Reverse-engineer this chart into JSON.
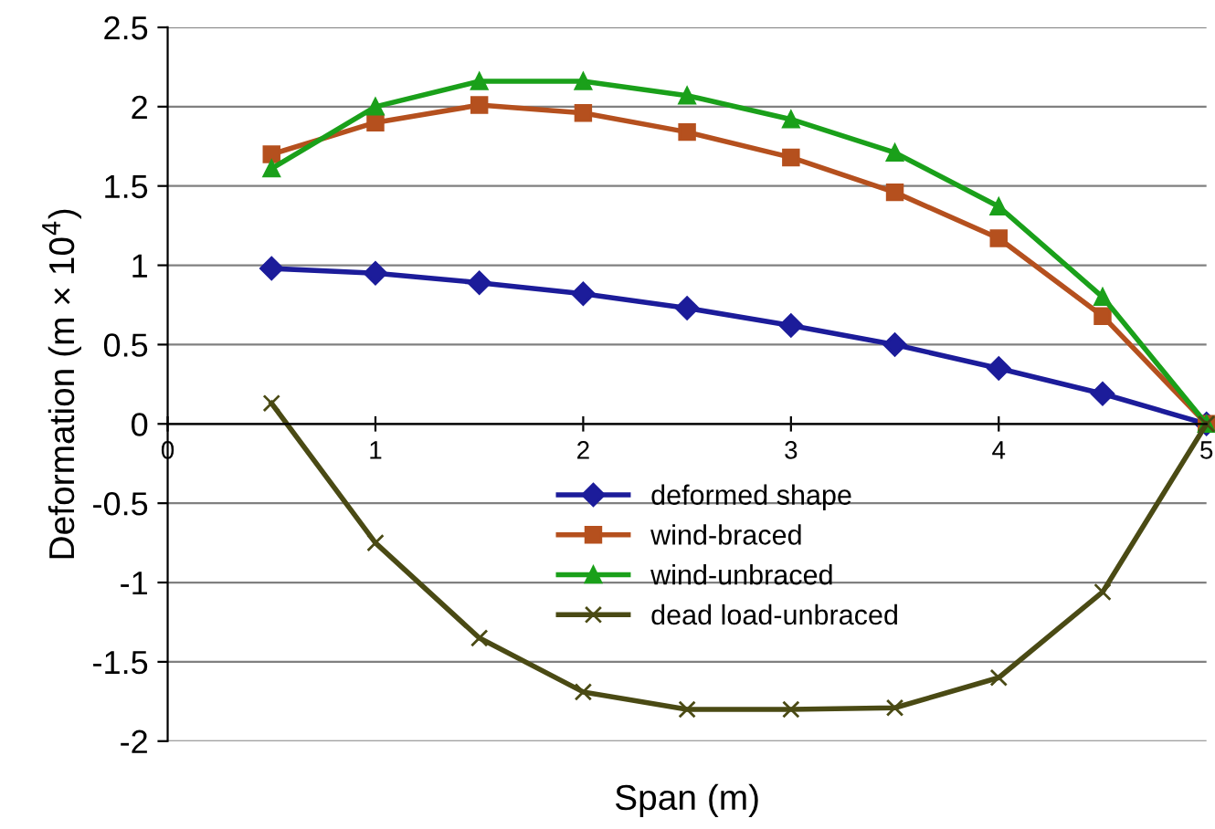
{
  "chart_data": {
    "type": "line",
    "xlabel": "Span (m)",
    "ylabel": "Deformation (m × 10$^{4}$)",
    "xlim": [
      0,
      5
    ],
    "xticks": [
      0,
      1,
      2,
      3,
      4,
      5
    ],
    "ylim": [
      -2,
      2.5
    ],
    "yticks": [
      -2,
      -1.5,
      -1,
      -0.5,
      0,
      0.5,
      1,
      1.5,
      2,
      2.5
    ],
    "grid": "y",
    "legend": "center",
    "line_style": "solid",
    "x": [
      0.5,
      1,
      1.5,
      2,
      2.5,
      3,
      3.5,
      4,
      4.5,
      5
    ],
    "series": [
      {
        "name": "deformed shape",
        "color": "#1c1c9a",
        "marker": "diamond",
        "values": [
          0.98,
          0.95,
          0.89,
          0.82,
          0.73,
          0.62,
          0.5,
          0.35,
          0.19,
          0
        ]
      },
      {
        "name": "wind-braced",
        "color": "#b5501e",
        "marker": "square",
        "values": [
          1.7,
          1.9,
          2.01,
          1.96,
          1.84,
          1.68,
          1.46,
          1.17,
          0.68,
          0
        ]
      },
      {
        "name": "wind-unbraced",
        "color": "#1aa01a",
        "marker": "triangle",
        "values": [
          1.61,
          2.0,
          2.16,
          2.16,
          2.07,
          1.92,
          1.71,
          1.37,
          0.8,
          0
        ]
      },
      {
        "name": "dead load-unbraced",
        "color": "#4a4a14",
        "marker": "cross",
        "values": [
          0.13,
          -0.75,
          -1.35,
          -1.69,
          -1.8,
          -1.8,
          -1.79,
          -1.6,
          -1.06,
          0
        ]
      }
    ]
  }
}
